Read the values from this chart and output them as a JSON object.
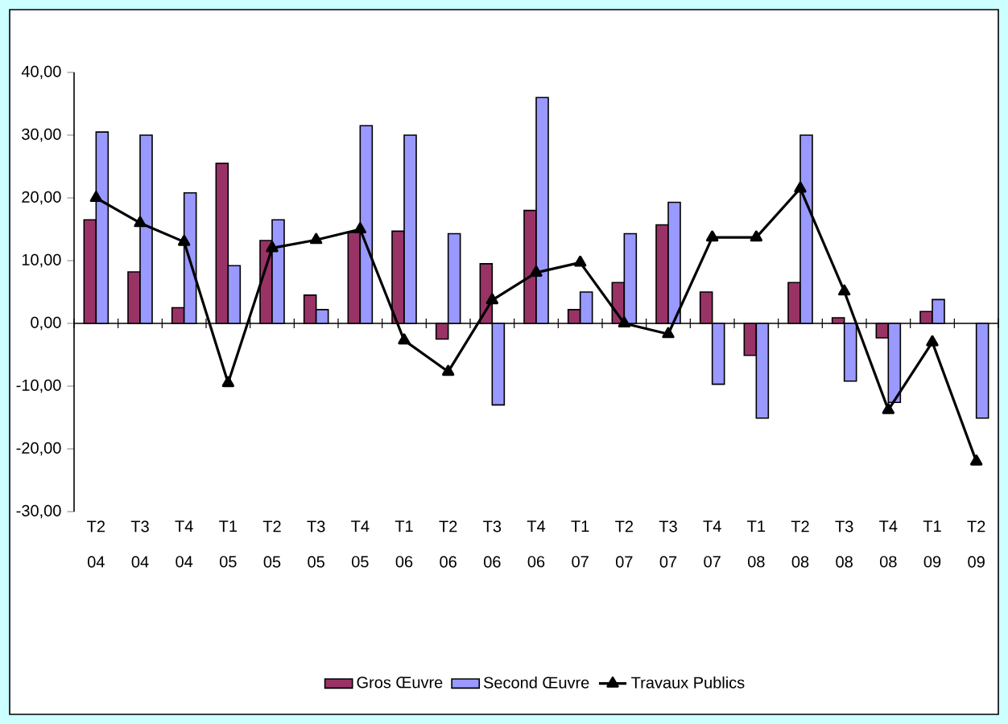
{
  "chart_data": {
    "type": "bar",
    "categories": [
      "T2 04",
      "T3 04",
      "T4 04",
      "T1 05",
      "T2 05",
      "T3 05",
      "T4 05",
      "T1 06",
      "T2 06",
      "T3 06",
      "T4 06",
      "T1 07",
      "T2 07",
      "T3 07",
      "T4 07",
      "T1 08",
      "T2 08",
      "T3 08",
      "T4 08",
      "T1 09",
      "T2 09"
    ],
    "series": [
      {
        "name": "Gros Œuvre",
        "color": "#993366",
        "values": [
          16.5,
          8.2,
          2.5,
          25.5,
          13.2,
          4.5,
          14.5,
          14.7,
          -2.5,
          9.5,
          18,
          2.2,
          6.5,
          15.7,
          5,
          -5.1,
          6.5,
          0.9,
          -2.3,
          1.9,
          null
        ]
      },
      {
        "name": "Second Œuvre",
        "color": "#9999ff",
        "values": [
          30.5,
          30,
          20.8,
          9.2,
          16.5,
          2.2,
          31.5,
          30,
          14.3,
          -13,
          36,
          5,
          14.3,
          19.3,
          -9.7,
          -15.1,
          30,
          -9.2,
          -12.6,
          3.8,
          -15.1
        ]
      },
      {
        "name": "Travaux Publics",
        "type": "line",
        "color": "#000000",
        "marker": "triangle",
        "values": [
          20,
          16,
          13,
          -9.5,
          12,
          13.3,
          15,
          -2.7,
          -7.7,
          3.7,
          8.1,
          9.7,
          0,
          -1.7,
          13.7,
          13.7,
          21.5,
          5.1,
          -13.8,
          -3,
          -22
        ]
      }
    ],
    "ylim": [
      -30,
      40
    ],
    "yticks": [
      {
        "value": -30,
        "label": "-30,00"
      },
      {
        "value": -20,
        "label": "-20,00"
      },
      {
        "value": -10,
        "label": "-10,00"
      },
      {
        "value": 0,
        "label": "0,00"
      },
      {
        "value": 10,
        "label": "10,00"
      },
      {
        "value": 20,
        "label": "20,00"
      },
      {
        "value": 30,
        "label": "30,00"
      },
      {
        "value": 40,
        "label": "40,00"
      }
    ],
    "legend": "bottom"
  }
}
